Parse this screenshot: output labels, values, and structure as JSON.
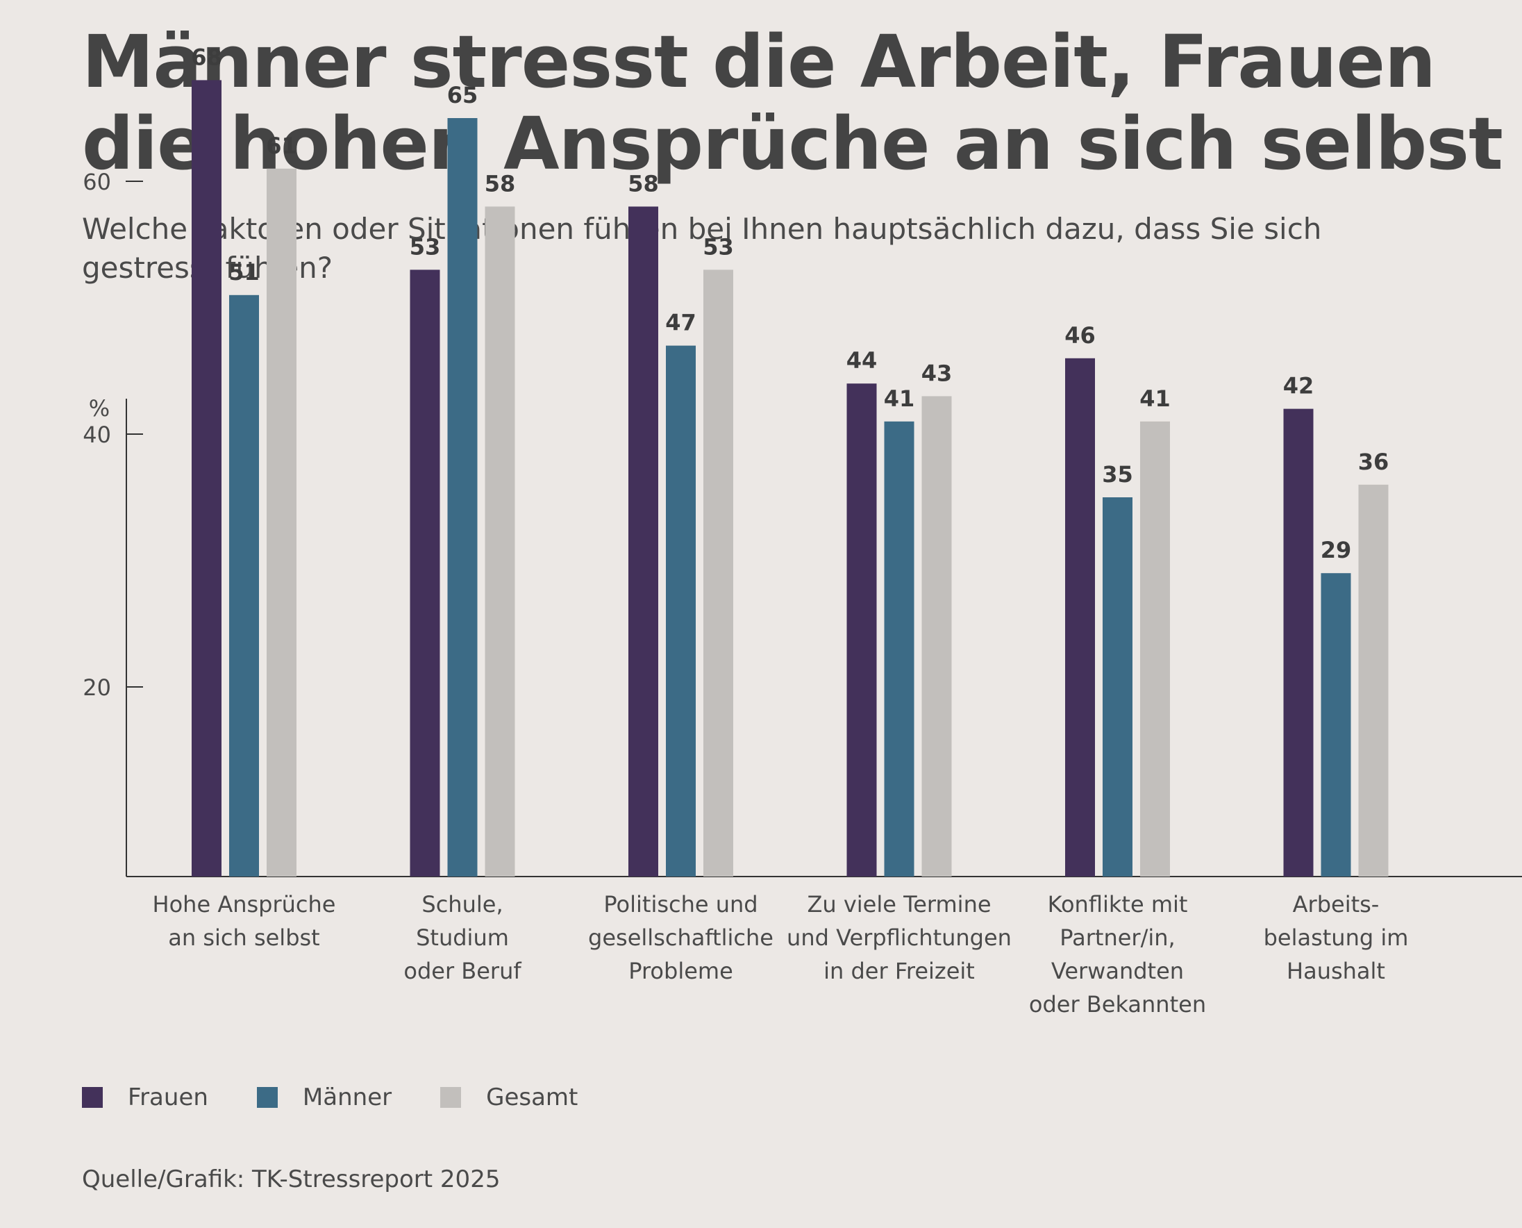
{
  "page": {
    "title_lines": [
      "Männer stresst die Arbeit, Frauen",
      "die hohen Ansprüche an sich selbst"
    ],
    "subtitle": "Welche Faktoren oder Situationen führen bei Ihnen hauptsächlich dazu, dass Sie sich gestresst fühlen?",
    "source": "Quelle/Grafik: TK-Stressreport 2025"
  },
  "chart_data": {
    "type": "bar",
    "title": "Männer stresst die Arbeit, Frauen die hohen Ansprüche an sich selbst",
    "subtitle": "Welche Faktoren oder Situationen führen bei Ihnen hauptsächlich dazu, dass Sie sich gestresst fühlen?",
    "ylabel": "%",
    "yticks": [
      20,
      40,
      60
    ],
    "ylim": [
      5,
      80
    ],
    "grid": false,
    "legend_position": "bottom-left",
    "categories": [
      [
        "Hohe Ansprüche",
        "an sich selbst"
      ],
      [
        "Schule,",
        "Studium",
        "oder Beruf"
      ],
      [
        "Politische und",
        "gesellschaftliche",
        "Probleme"
      ],
      [
        "Zu viele Termine",
        "und Verpflichtungen",
        "in der Freizeit"
      ],
      [
        "Konflikte mit",
        "Partner/in,",
        "Verwandten",
        "oder Bekannten"
      ],
      [
        "Arbeits-",
        "belastung im",
        "Haushalt"
      ]
    ],
    "series": [
      {
        "name": "Frauen",
        "color": "#43315a",
        "values": [
          68,
          53,
          58,
          44,
          46,
          42
        ]
      },
      {
        "name": "Männer",
        "color": "#3c6b86",
        "values": [
          51,
          65,
          47,
          41,
          35,
          29
        ]
      },
      {
        "name": "Gesamt",
        "color": "#c2bfbc",
        "values": [
          61,
          58,
          53,
          43,
          41,
          36
        ]
      }
    ],
    "axis_color": "#333333"
  }
}
